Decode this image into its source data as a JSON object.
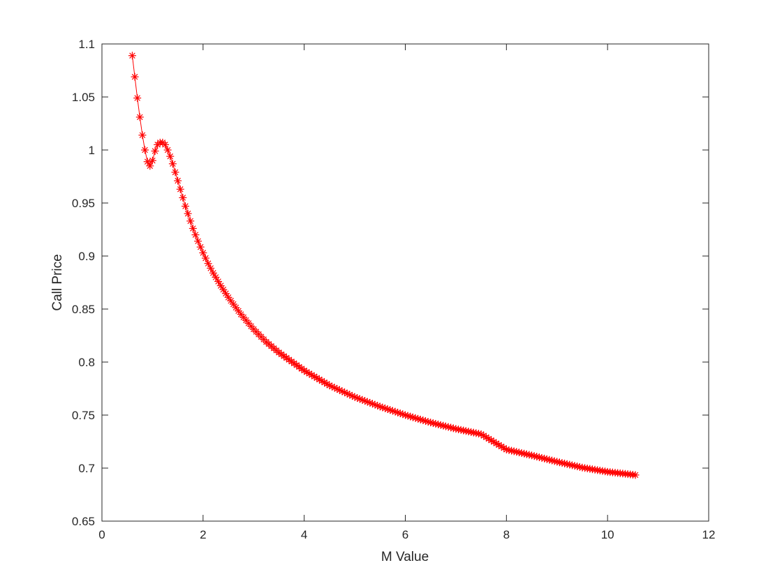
{
  "chart_data": {
    "type": "line",
    "title": "",
    "xlabel": "M Value",
    "ylabel": "Call Price",
    "xlim": [
      0,
      12
    ],
    "ylim": [
      0.65,
      1.1
    ],
    "xticks": [
      0,
      2,
      4,
      6,
      8,
      10,
      12
    ],
    "xtick_labels": [
      "0",
      "2",
      "4",
      "6",
      "8",
      "10",
      "12"
    ],
    "yticks": [
      0.65,
      0.7,
      0.75,
      0.8,
      0.85,
      0.9,
      0.95,
      1.0,
      1.05,
      1.1
    ],
    "ytick_labels": [
      "0.65",
      "0.7",
      "0.75",
      "0.8",
      "0.85",
      "0.9",
      "0.95",
      "1",
      "1.05",
      "1.1"
    ],
    "grid": false,
    "legend": "none",
    "marker": "asterisk",
    "color": "#ff0000",
    "series": [
      {
        "x": [
          0.6,
          0.65,
          0.7,
          0.75,
          0.8,
          0.85,
          0.9,
          0.95,
          1.0,
          1.05,
          1.1,
          1.15,
          1.2,
          1.25,
          1.3,
          1.35,
          1.4,
          1.45,
          1.5,
          1.55,
          1.6,
          1.65,
          1.7,
          1.8,
          1.9,
          2.0,
          2.1,
          2.2,
          2.35,
          2.5,
          2.75,
          3.0,
          3.25,
          3.5,
          4.0,
          4.5,
          5.0,
          5.5,
          6.0,
          6.5,
          7.0,
          7.5,
          8.0,
          8.5,
          9.0,
          9.5,
          10.0,
          10.55
        ],
        "y": [
          1.089,
          1.069,
          1.049,
          1.031,
          1.014,
          1.0,
          0.989,
          0.985,
          0.99,
          0.999,
          1.005,
          1.007,
          1.007,
          1.005,
          1.0,
          0.994,
          0.987,
          0.979,
          0.971,
          0.963,
          0.955,
          0.947,
          0.94,
          0.926,
          0.914,
          0.903,
          0.893,
          0.884,
          0.872,
          0.861,
          0.845,
          0.831,
          0.819,
          0.809,
          0.792,
          0.778,
          0.767,
          0.758,
          0.75,
          0.743,
          0.737,
          0.732,
          0.7175,
          0.712,
          0.706,
          0.7005,
          0.6965,
          0.6935
        ]
      }
    ]
  }
}
